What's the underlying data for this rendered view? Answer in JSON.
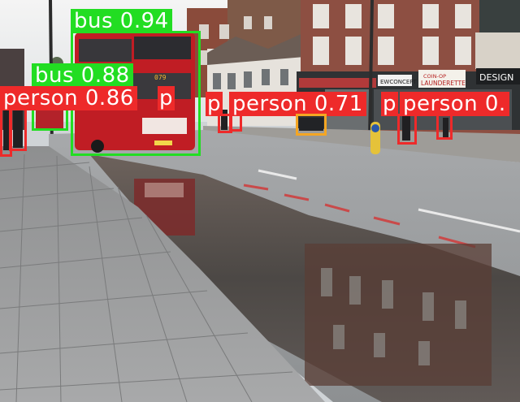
{
  "scene": {
    "description_icon": "street-scene-photo",
    "shop_signs": [
      "COIN-OP LAUNDERETTE",
      "EWCONCEPT",
      "DESIGN",
      "079"
    ]
  },
  "detections": [
    {
      "id": "bus-1",
      "label": "bus 0.94",
      "color": "#22dd22"
    },
    {
      "id": "bus-2",
      "label": "bus 0.88",
      "color": "#22dd22"
    },
    {
      "id": "person-1",
      "label": "person 0.86",
      "color": "#ee2a2a"
    },
    {
      "id": "person-2",
      "label": "person 0.71",
      "color": "#ee2a2a"
    },
    {
      "id": "person-3",
      "label": "person 0.",
      "color": "#ee2a2a"
    },
    {
      "id": "person-4",
      "label": "p",
      "color": "#ee2a2a"
    },
    {
      "id": "person-5",
      "label": "p",
      "color": "#ee2a2a"
    },
    {
      "id": "person-6",
      "label": "p",
      "color": "#ee2a2a"
    },
    {
      "id": "car-1",
      "label": "",
      "color": "#f5a623"
    }
  ]
}
